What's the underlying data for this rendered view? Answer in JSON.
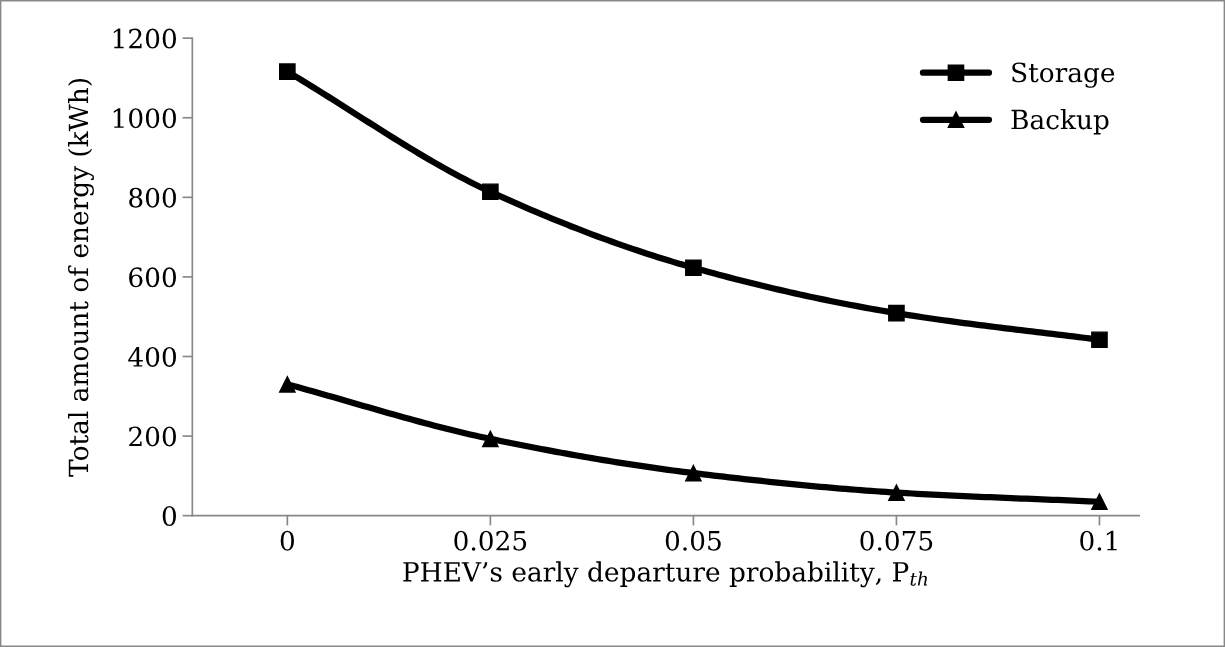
{
  "chart_data": {
    "type": "line",
    "xlabel": "PHEV’s early departure probability, P$_{th}$",
    "ylabel": "Total amount of energy (kWh)",
    "x": [
      0,
      0.025,
      0.05,
      0.075,
      0.1
    ],
    "series": [
      {
        "name": "Storage",
        "color": "#000000",
        "marker": "square",
        "values": [
          1116,
          814,
          623,
          509,
          442
        ]
      },
      {
        "name": "Backup",
        "color": "#000000",
        "marker": "triangle",
        "values": [
          330,
          193,
          107,
          58,
          35
        ]
      }
    ],
    "xlim": [
      -0.0117,
      0.1049
    ],
    "xticks": [
      0,
      0.025,
      0.05,
      0.075,
      0.1
    ],
    "ylim": [
      0,
      1200
    ],
    "yticks": [
      0,
      200,
      400,
      600,
      800,
      1000,
      1200
    ],
    "grid": false,
    "legend": "top right",
    "line_style": "solid"
  }
}
